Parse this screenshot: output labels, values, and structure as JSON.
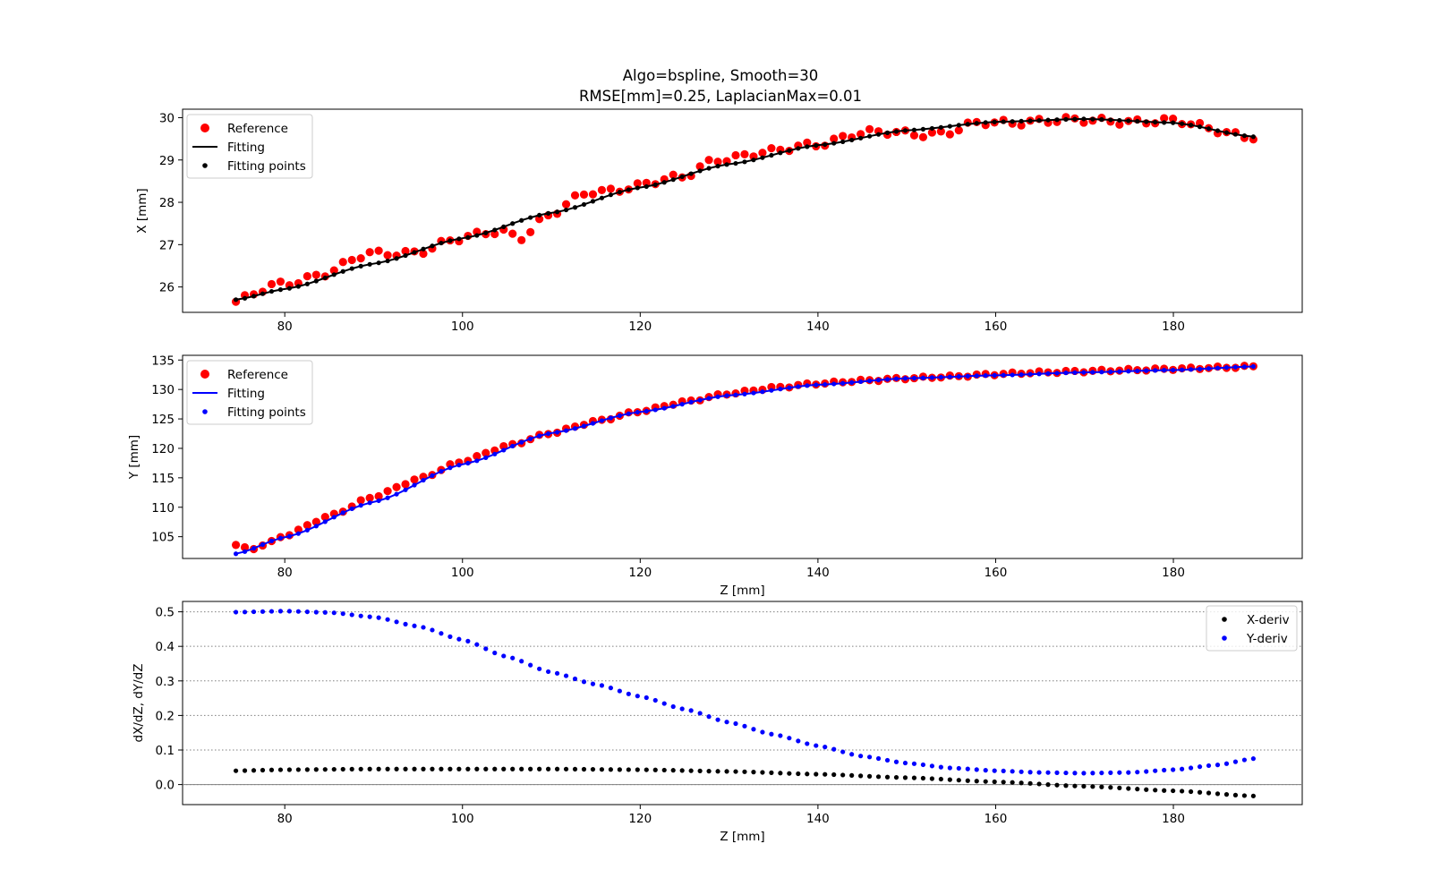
{
  "title": {
    "line1": "Algo=bspline, Smooth=30",
    "line2": "RMSE[mm]=0.25, LaplacianMax=0.01"
  },
  "colors": {
    "reference": "#ff0000",
    "fitting_x": "#000000",
    "fitting_y": "#0000ff",
    "x_deriv": "#000000",
    "y_deriv": "#0000ff",
    "grid": "#808080"
  },
  "chart_data": [
    {
      "type": "line",
      "xlabel": "",
      "ylabel": "X [mm]",
      "xlim": [
        68.5,
        194.5
      ],
      "ylim": [
        25.4,
        30.2
      ],
      "xticks": [
        80,
        100,
        120,
        140,
        160,
        180
      ],
      "yticks": [
        26,
        27,
        28,
        29,
        30
      ],
      "legend_position": "top-left",
      "legend": [
        "Reference",
        "Fitting",
        "Fitting points"
      ],
      "z_range": [
        74.5,
        189
      ],
      "reference_x_pts": [
        74.5,
        79.5,
        84.5,
        89.5,
        94.5,
        99.5,
        104.5,
        106.5,
        109.5,
        114.5,
        119.5,
        124.5,
        128.5,
        134.5,
        139.5,
        144.5,
        149.5,
        154.5,
        158.5,
        164.5,
        169.5,
        174.5,
        179.5,
        184.5,
        189.0
      ],
      "reference_x_vals": [
        25.65,
        26.05,
        26.35,
        26.75,
        26.85,
        27.1,
        27.35,
        27.2,
        27.65,
        28.25,
        28.4,
        28.55,
        29.05,
        29.15,
        29.4,
        29.6,
        29.65,
        29.65,
        29.85,
        29.95,
        29.9,
        29.95,
        29.9,
        29.75,
        29.55
      ],
      "fitting_x_pts": [
        74.5,
        80,
        90,
        100,
        110,
        120,
        130,
        140,
        150,
        160,
        170,
        180,
        189.0
      ],
      "fitting_x_vals": [
        25.7,
        25.95,
        26.55,
        27.15,
        27.75,
        28.35,
        28.9,
        29.35,
        29.7,
        29.9,
        29.97,
        29.88,
        29.55
      ],
      "fitting_points_count": 115
    },
    {
      "type": "line",
      "xlabel": "Z [mm]",
      "ylabel": "Y [mm]",
      "xlim": [
        68.5,
        194.5
      ],
      "ylim": [
        101.3,
        135.8
      ],
      "xticks": [
        80,
        100,
        120,
        140,
        160,
        180
      ],
      "yticks": [
        105,
        110,
        115,
        120,
        125,
        130,
        135
      ],
      "legend_position": "top-left",
      "legend": [
        "Reference",
        "Fitting",
        "Fitting points"
      ],
      "z_range": [
        74.5,
        189
      ],
      "reference_y_pts": [
        74.5,
        76,
        78,
        80,
        85,
        90,
        95,
        100,
        105,
        110,
        115,
        120,
        125,
        130,
        135,
        140,
        145,
        150,
        155,
        160,
        165,
        170,
        175,
        180,
        185,
        189.0
      ],
      "reference_y_vals": [
        103.6,
        102.8,
        103.8,
        105.2,
        108.5,
        111.8,
        114.8,
        117.8,
        120.4,
        122.6,
        124.6,
        126.3,
        127.9,
        129.3,
        130.3,
        131.0,
        131.5,
        131.9,
        132.2,
        132.6,
        132.9,
        133.1,
        133.3,
        133.5,
        133.7,
        133.9
      ],
      "fitting_y_pts": [
        74.5,
        80,
        90,
        100,
        110,
        120,
        130,
        140,
        150,
        160,
        170,
        180,
        189.0
      ],
      "fitting_y_vals": [
        102.1,
        104.9,
        110.9,
        117.3,
        122.6,
        126.2,
        129.0,
        130.8,
        131.9,
        132.4,
        132.9,
        133.3,
        133.9
      ],
      "fitting_points_count": 115
    },
    {
      "type": "scatter",
      "xlabel": "Z [mm]",
      "ylabel": "dX/dZ, dY/dZ",
      "xlim": [
        68.5,
        194.5
      ],
      "ylim": [
        -0.058,
        0.53
      ],
      "xticks": [
        80,
        100,
        120,
        140,
        160,
        180
      ],
      "yticks": [
        0.0,
        0.1,
        0.2,
        0.3,
        0.4,
        0.5
      ],
      "ytick_labels": [
        "0.0",
        "0.1",
        "0.2",
        "0.3",
        "0.4",
        "0.5"
      ],
      "grid": "horizontal dotted",
      "legend_position": "top-right",
      "legend": [
        "X-deriv",
        "Y-deriv"
      ],
      "x_deriv_pts": [
        74.5,
        80,
        90,
        100,
        110,
        120,
        130,
        140,
        150,
        160,
        170,
        180,
        189.0
      ],
      "x_deriv_vals": [
        0.04,
        0.043,
        0.045,
        0.045,
        0.045,
        0.043,
        0.038,
        0.03,
        0.02,
        0.008,
        -0.005,
        -0.018,
        -0.033
      ],
      "y_deriv_pts": [
        74.5,
        80,
        85,
        90,
        95,
        100,
        105,
        110,
        115,
        120,
        125,
        130,
        135,
        140,
        145,
        150,
        155,
        160,
        165,
        170,
        175,
        180,
        185,
        189.0
      ],
      "y_deriv_vals": [
        0.499,
        0.502,
        0.498,
        0.485,
        0.458,
        0.419,
        0.37,
        0.325,
        0.29,
        0.255,
        0.218,
        0.18,
        0.145,
        0.112,
        0.082,
        0.062,
        0.048,
        0.04,
        0.035,
        0.033,
        0.035,
        0.043,
        0.057,
        0.075
      ],
      "point_count": 115
    }
  ]
}
